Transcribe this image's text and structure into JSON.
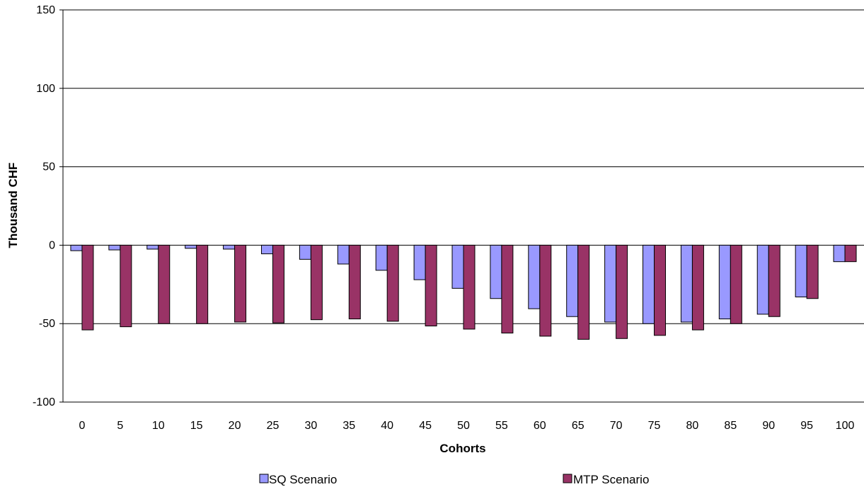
{
  "chart_data": {
    "type": "bar",
    "title": "",
    "xlabel": "Cohorts",
    "ylabel": "Thousand CHF",
    "categories": [
      "0",
      "5",
      "10",
      "15",
      "20",
      "25",
      "30",
      "35",
      "40",
      "45",
      "50",
      "55",
      "60",
      "65",
      "70",
      "75",
      "80",
      "85",
      "90",
      "95",
      "100"
    ],
    "ylim": [
      -100,
      150
    ],
    "yticks": [
      -100,
      -50,
      0,
      50,
      100,
      150
    ],
    "grid": true,
    "legend_position": "bottom",
    "series": [
      {
        "name": "SQ Scenario",
        "color": "#9999ff",
        "values": [
          -3.5,
          -3,
          -2.5,
          -2,
          -2.5,
          -5.5,
          -9,
          -12,
          -16,
          -22,
          -27.5,
          -34,
          -40.5,
          -45.5,
          -49,
          -50,
          -49,
          -47,
          -44,
          -33,
          -10.5
        ]
      },
      {
        "name": "MTP Scenario",
        "color": "#993366",
        "values": [
          -54,
          -52,
          -50,
          -50,
          -49,
          -49.5,
          -47.5,
          -47,
          -48.5,
          -51.5,
          -53.5,
          -56,
          -58,
          -60,
          -59.5,
          -57.5,
          -54,
          -50,
          -45.5,
          -34,
          -10.5
        ]
      }
    ]
  }
}
